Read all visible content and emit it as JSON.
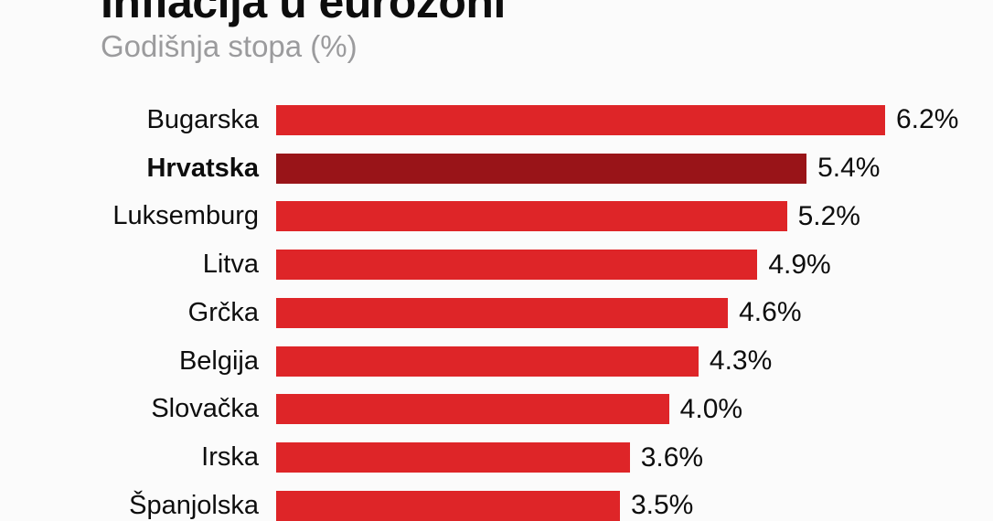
{
  "header": {
    "title": "Inflacija u eurozoni",
    "subtitle": "Godišnja stopa (%)"
  },
  "colors": {
    "bar": "#DE2528",
    "bar_highlight": "#991418",
    "text": "#0d0d0d",
    "subtitle_gray": "#9B9B9D",
    "background": "#FBFBFB"
  },
  "chart_data": {
    "type": "bar",
    "orientation": "horizontal",
    "title": "Inflacija u eurozoni",
    "subtitle": "Godišnja stopa (%)",
    "unit": "%",
    "xlim": [
      0,
      6.2
    ],
    "grid": false,
    "legend": "none",
    "categories": [
      "Bugarska",
      "Hrvatska",
      "Luksemburg",
      "Litva",
      "Grčka",
      "Belgija",
      "Slovačka",
      "Irska",
      "Španjolska"
    ],
    "values": [
      6.2,
      5.4,
      5.2,
      4.9,
      4.6,
      4.3,
      4.0,
      3.6,
      3.5
    ],
    "value_labels": [
      "6.2%",
      "5.4%",
      "5.2%",
      "4.9%",
      "4.6%",
      "4.3%",
      "4.0%",
      "3.6%",
      "3.5%"
    ],
    "highlighted_category": "Hrvatska",
    "notes": "title partially clipped at top edge; last row clipped at bottom edge"
  }
}
